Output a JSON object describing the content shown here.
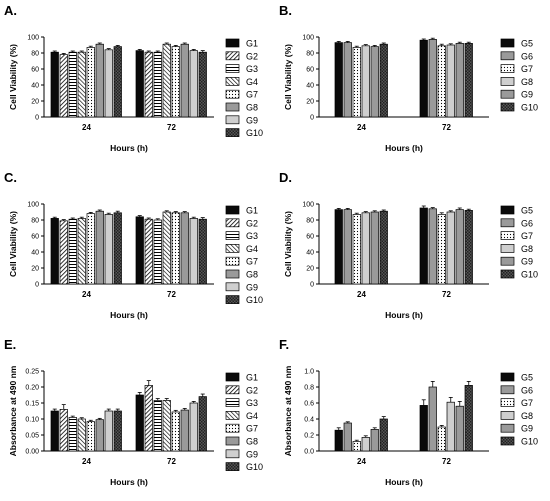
{
  "patterns": {
    "solid": "#0a0a0a",
    "diag": "#000000",
    "rdiag": "#000000",
    "hatch": "#000000",
    "dots": "#000000",
    "gray": "#9a9a9a",
    "lightgray": "#cfcfcf",
    "check": "#000000"
  },
  "chart_data": [
    {
      "panel": "A.",
      "type": "bar",
      "xlabel": "Hours (h)",
      "ylabel": "Cell Viability (%)",
      "ylim": [
        0,
        100
      ],
      "yticks": [
        "0",
        "20",
        "40",
        "60",
        "80",
        "100"
      ],
      "categories": [
        "24",
        "72"
      ],
      "series": [
        {
          "name": "G1",
          "pattern": "solid",
          "values": [
            81,
            83
          ],
          "errors": [
            1.5,
            1.5
          ]
        },
        {
          "name": "G2",
          "pattern": "diag",
          "values": [
            78,
            81
          ],
          "errors": [
            1.5,
            1.5
          ]
        },
        {
          "name": "G3",
          "pattern": "hatch",
          "values": [
            81,
            81
          ],
          "errors": [
            1.5,
            1.5
          ]
        },
        {
          "name": "G4",
          "pattern": "rdiag",
          "values": [
            81,
            91
          ],
          "errors": [
            1.5,
            1.5
          ]
        },
        {
          "name": "G7",
          "pattern": "dots",
          "values": [
            87,
            88
          ],
          "errors": [
            1.5,
            1.5
          ]
        },
        {
          "name": "G8",
          "pattern": "gray",
          "values": [
            91,
            91
          ],
          "errors": [
            1.5,
            1.5
          ]
        },
        {
          "name": "G9",
          "pattern": "lightgray",
          "values": [
            84,
            83
          ],
          "errors": [
            1.5,
            1.5
          ]
        },
        {
          "name": "G10",
          "pattern": "check",
          "values": [
            88,
            81
          ],
          "errors": [
            1.5,
            2
          ]
        }
      ]
    },
    {
      "panel": "B.",
      "type": "bar",
      "xlabel": "Hours (h)",
      "ylabel": "Cell Viability (%)",
      "ylim": [
        0,
        100
      ],
      "yticks": [
        "0",
        "20",
        "40",
        "60",
        "80",
        "100"
      ],
      "categories": [
        "24",
        "72"
      ],
      "series": [
        {
          "name": "G5",
          "pattern": "solid",
          "values": [
            93,
            96
          ],
          "errors": [
            1.5,
            1.5
          ]
        },
        {
          "name": "G6",
          "pattern": "gray",
          "values": [
            93,
            97
          ],
          "errors": [
            1.5,
            1.5
          ]
        },
        {
          "name": "G7",
          "pattern": "dots",
          "values": [
            87,
            89
          ],
          "errors": [
            1.5,
            2
          ]
        },
        {
          "name": "G8",
          "pattern": "lightgray",
          "values": [
            89,
            90
          ],
          "errors": [
            1.5,
            1.5
          ]
        },
        {
          "name": "G9",
          "pattern": "gray",
          "values": [
            88,
            92
          ],
          "errors": [
            1.5,
            1.5
          ]
        },
        {
          "name": "G10",
          "pattern": "check",
          "values": [
            91,
            92
          ],
          "errors": [
            1.5,
            1.5
          ]
        }
      ]
    },
    {
      "panel": "C.",
      "type": "bar",
      "xlabel": "Hours (h)",
      "ylabel": "Cell Viability (%)",
      "ylim": [
        0,
        100
      ],
      "yticks": [
        "0",
        "20",
        "40",
        "60",
        "80",
        "100"
      ],
      "categories": [
        "24",
        "72"
      ],
      "series": [
        {
          "name": "G1",
          "pattern": "solid",
          "values": [
            82,
            84
          ],
          "errors": [
            1.5,
            1.5
          ]
        },
        {
          "name": "G2",
          "pattern": "diag",
          "values": [
            79,
            81
          ],
          "errors": [
            1.5,
            1.5
          ]
        },
        {
          "name": "G3",
          "pattern": "hatch",
          "values": [
            81,
            80
          ],
          "errors": [
            1.5,
            1.5
          ]
        },
        {
          "name": "G4",
          "pattern": "rdiag",
          "values": [
            82,
            90
          ],
          "errors": [
            1.5,
            1.5
          ]
        },
        {
          "name": "G7",
          "pattern": "dots",
          "values": [
            88,
            89
          ],
          "errors": [
            1.5,
            1.5
          ]
        },
        {
          "name": "G8",
          "pattern": "gray",
          "values": [
            91,
            89
          ],
          "errors": [
            1.5,
            1.5
          ]
        },
        {
          "name": "G9",
          "pattern": "lightgray",
          "values": [
            87,
            82
          ],
          "errors": [
            1.5,
            1.5
          ]
        },
        {
          "name": "G10",
          "pattern": "check",
          "values": [
            89,
            81
          ],
          "errors": [
            2,
            2
          ]
        }
      ]
    },
    {
      "panel": "D.",
      "type": "bar",
      "xlabel": "Hours (h)",
      "ylabel": "Cell Viability (%)",
      "ylim": [
        0,
        100
      ],
      "yticks": [
        "0",
        "20",
        "40",
        "60",
        "80",
        "100"
      ],
      "categories": [
        "24",
        "72"
      ],
      "series": [
        {
          "name": "G5",
          "pattern": "solid",
          "values": [
            93,
            95
          ],
          "errors": [
            1.5,
            2.5
          ]
        },
        {
          "name": "G6",
          "pattern": "gray",
          "values": [
            93,
            94
          ],
          "errors": [
            1.5,
            1.5
          ]
        },
        {
          "name": "G7",
          "pattern": "dots",
          "values": [
            87,
            87
          ],
          "errors": [
            1.5,
            2
          ]
        },
        {
          "name": "G8",
          "pattern": "lightgray",
          "values": [
            89,
            90
          ],
          "errors": [
            1.5,
            1.5
          ]
        },
        {
          "name": "G9",
          "pattern": "gray",
          "values": [
            90,
            93
          ],
          "errors": [
            1.5,
            2
          ]
        },
        {
          "name": "G10",
          "pattern": "check",
          "values": [
            91,
            92
          ],
          "errors": [
            1.5,
            1.5
          ]
        }
      ]
    },
    {
      "panel": "E.",
      "type": "bar",
      "xlabel": "Hours (h)",
      "ylabel": "Absorbance at 490 nm",
      "ylim": [
        0,
        0.25
      ],
      "yticks": [
        "0.00",
        "0.05",
        "0.10",
        "0.15",
        "0.20",
        "0.25"
      ],
      "categories": [
        "24",
        "72"
      ],
      "series": [
        {
          "name": "G1",
          "pattern": "solid",
          "values": [
            0.125,
            0.175
          ],
          "errors": [
            0.006,
            0.008
          ]
        },
        {
          "name": "G2",
          "pattern": "diag",
          "values": [
            0.13,
            0.205
          ],
          "errors": [
            0.015,
            0.015
          ]
        },
        {
          "name": "G3",
          "pattern": "hatch",
          "values": [
            0.105,
            0.158
          ],
          "errors": [
            0.004,
            0.006
          ]
        },
        {
          "name": "G4",
          "pattern": "rdiag",
          "values": [
            0.1,
            0.158
          ],
          "errors": [
            0.004,
            0.006
          ]
        },
        {
          "name": "G7",
          "pattern": "dots",
          "values": [
            0.092,
            0.122
          ],
          "errors": [
            0.004,
            0.005
          ]
        },
        {
          "name": "G8",
          "pattern": "gray",
          "values": [
            0.098,
            0.128
          ],
          "errors": [
            0.004,
            0.005
          ]
        },
        {
          "name": "G9",
          "pattern": "lightgray",
          "values": [
            0.125,
            0.15
          ],
          "errors": [
            0.006,
            0.005
          ]
        },
        {
          "name": "G10",
          "pattern": "check",
          "values": [
            0.125,
            0.17
          ],
          "errors": [
            0.006,
            0.008
          ]
        }
      ]
    },
    {
      "panel": "F.",
      "type": "bar",
      "xlabel": "Hours (h)",
      "ylabel": "Absorbance at 490 nm",
      "ylim": [
        0,
        1.0
      ],
      "yticks": [
        "0.0",
        "0.2",
        "0.4",
        "0.6",
        "0.8",
        "1.0"
      ],
      "categories": [
        "24",
        "72"
      ],
      "series": [
        {
          "name": "G5",
          "pattern": "solid",
          "values": [
            0.26,
            0.57
          ],
          "errors": [
            0.03,
            0.07
          ]
        },
        {
          "name": "G6",
          "pattern": "gray",
          "values": [
            0.35,
            0.8
          ],
          "errors": [
            0.015,
            0.07
          ]
        },
        {
          "name": "G7",
          "pattern": "dots",
          "values": [
            0.12,
            0.3
          ],
          "errors": [
            0.015,
            0.02
          ]
        },
        {
          "name": "G8",
          "pattern": "lightgray",
          "values": [
            0.17,
            0.61
          ],
          "errors": [
            0.02,
            0.06
          ]
        },
        {
          "name": "G9",
          "pattern": "gray",
          "values": [
            0.27,
            0.56
          ],
          "errors": [
            0.02,
            0.06
          ]
        },
        {
          "name": "G10",
          "pattern": "check",
          "values": [
            0.4,
            0.82
          ],
          "errors": [
            0.03,
            0.05
          ]
        }
      ]
    }
  ]
}
